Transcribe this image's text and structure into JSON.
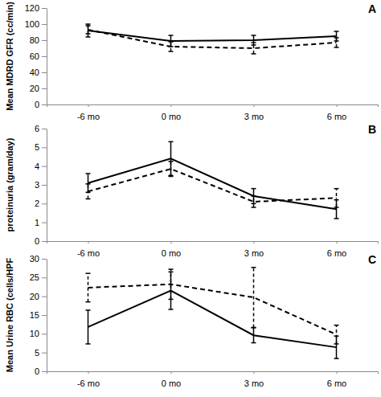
{
  "chart_data": [
    {
      "type": "line",
      "title": "A",
      "y_label": "Mean MDRD GFR (cc/min)",
      "categories": [
        "-6 mo",
        "0 mo",
        "3 mo",
        "6 mo"
      ],
      "ylim": [
        0,
        120
      ],
      "yticks": [
        0,
        20,
        40,
        60,
        80,
        100,
        120
      ],
      "series": [
        {
          "color": "#000000",
          "line_style": "solid",
          "values": [
            92,
            79,
            80,
            85
          ],
          "errors": [
            8,
            7,
            6,
            6
          ]
        },
        {
          "color": "#000000",
          "line_style": "dashed",
          "values": [
            93,
            72,
            70,
            77
          ],
          "errors": [
            5,
            6,
            7,
            6
          ]
        }
      ]
    },
    {
      "type": "line",
      "title": "B",
      "y_label": "proteinuria (gram/day)",
      "categories": [
        "-6 mo",
        "0 mo",
        "3 mo",
        "6 mo"
      ],
      "ylim": [
        0,
        6
      ],
      "yticks": [
        0,
        1,
        2,
        3,
        4,
        5,
        6
      ],
      "series": [
        {
          "color": "#000000",
          "line_style": "solid",
          "values": [
            3.1,
            4.4,
            2.4,
            1.7
          ],
          "errors": [
            0.5,
            0.9,
            0.4,
            0.5
          ]
        },
        {
          "color": "#000000",
          "line_style": "dashed",
          "values": [
            2.65,
            3.85,
            2.1,
            2.3
          ],
          "errors": [
            0.4,
            0.4,
            0.3,
            0.5
          ]
        }
      ]
    },
    {
      "type": "line",
      "title": "C",
      "y_label": "Mean Urine RBC (cells/HPF",
      "categories": [
        "-6 mo",
        "0 mo",
        "3 mo",
        "6 mo"
      ],
      "ylim": [
        0,
        30
      ],
      "yticks": [
        0,
        5,
        10,
        15,
        20,
        25,
        30
      ],
      "series": [
        {
          "color": "#000000",
          "line_style": "solid",
          "values": [
            11.8,
            21.5,
            9.6,
            6.4
          ],
          "errors": [
            4.5,
            5,
            2,
            3
          ]
        },
        {
          "color": "#000000",
          "line_style": "dashed",
          "values": [
            22.3,
            23.2,
            19.7,
            9.8
          ],
          "errors": [
            3.8,
            4,
            8,
            2.5
          ]
        }
      ]
    }
  ]
}
